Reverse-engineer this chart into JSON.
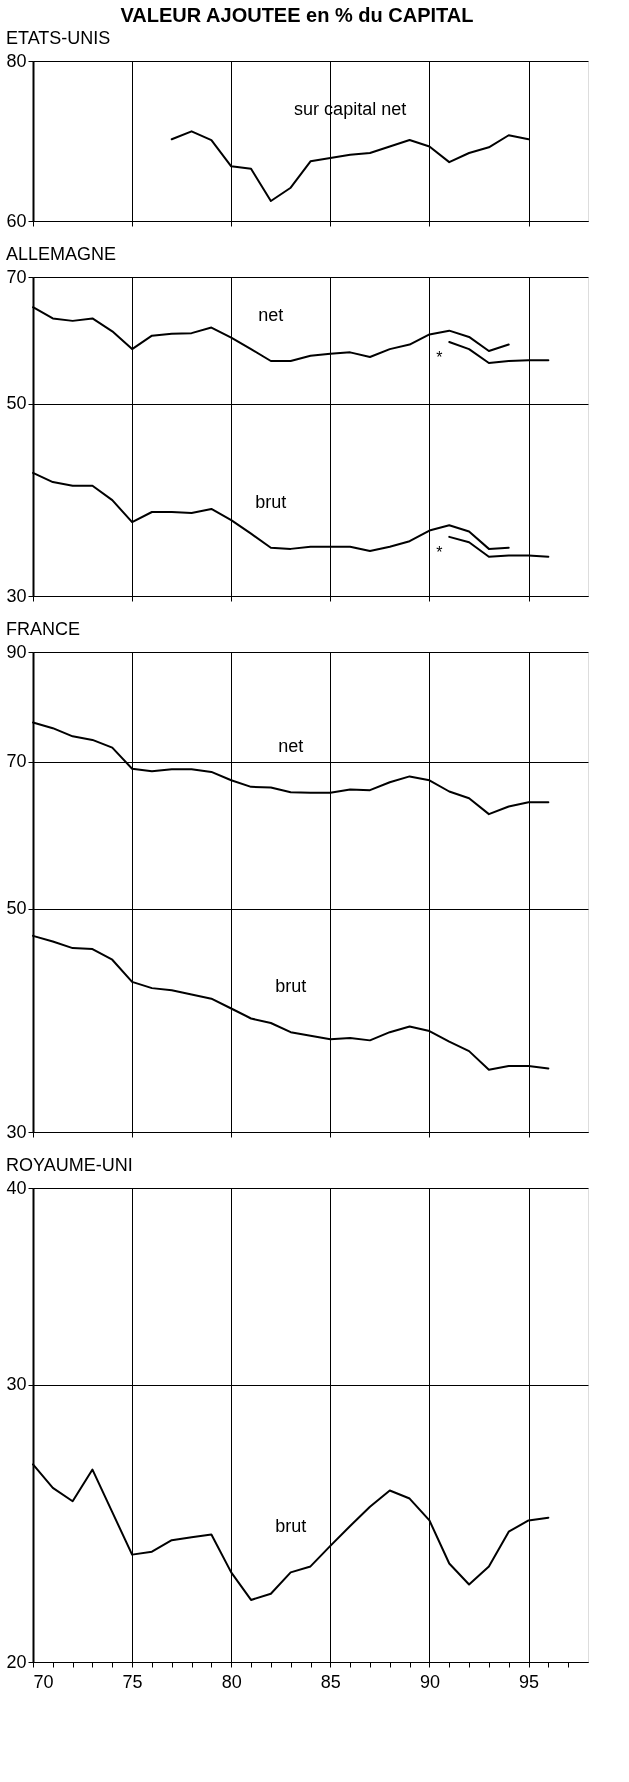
{
  "chart_data": [
    {
      "type": "line",
      "title": "VALEUR AJOUTEE en % du CAPITAL",
      "subtitle": "ETATS-UNIS",
      "log": true,
      "grid": true,
      "tick_labels": "y",
      "xlim": [
        70,
        98
      ],
      "xticks": [
        70,
        75,
        80,
        85,
        90,
        95
      ],
      "ylim": [
        60,
        80
      ],
      "yticks": [
        60,
        80
      ],
      "x": [
        77,
        78,
        79,
        80,
        81,
        82,
        83,
        84,
        85,
        86,
        87,
        88,
        89,
        90,
        91,
        92,
        93,
        94,
        95
      ],
      "series": [
        {
          "name": "sur capital net",
          "color": "#000000",
          "values": [
            69.5,
            70.5,
            69.4,
            66.2,
            65.9,
            62.2,
            63.7,
            66.8,
            67.2,
            67.6,
            67.8,
            68.6,
            69.4,
            68.6,
            66.7,
            67.8,
            68.5,
            70.0,
            69.5
          ]
        }
      ]
    },
    {
      "type": "line",
      "title": "ALLEMAGNE",
      "log": true,
      "grid": true,
      "tick_labels": "y",
      "xlim": [
        70,
        98
      ],
      "xticks": [
        70,
        75,
        80,
        85,
        90,
        95
      ],
      "ylim": [
        30,
        70
      ],
      "yticks": [
        30,
        50,
        70
      ],
      "x": [
        70,
        71,
        72,
        73,
        74,
        75,
        76,
        77,
        78,
        79,
        80,
        81,
        82,
        83,
        84,
        85,
        86,
        87,
        88,
        89,
        90,
        91,
        92,
        93,
        94
      ],
      "series": [
        {
          "name": "net",
          "color": "#000000",
          "values": [
            64.6,
            62.7,
            62.3,
            62.7,
            60.6,
            57.8,
            59.9,
            60.2,
            60.3,
            61.2,
            59.6,
            57.8,
            56.0,
            56.0,
            56.8,
            57.1,
            57.3,
            56.6,
            57.8,
            58.5,
            60.1,
            60.7,
            59.7,
            57.5,
            58.5
          ]
        },
        {
          "color": "#000000",
          "x": [
            91,
            92,
            93,
            94,
            95,
            96
          ],
          "values": [
            58.9,
            57.8,
            55.7,
            56.0,
            56.1,
            56.1
          ]
        },
        {
          "name": "brut",
          "color": "#000000",
          "values": [
            41.6,
            40.6,
            40.2,
            40.2,
            38.7,
            36.5,
            37.5,
            37.5,
            37.4,
            37.8,
            36.7,
            35.4,
            34.1,
            34.0,
            34.2,
            34.2,
            34.2,
            33.8,
            34.2,
            34.7,
            35.7,
            36.2,
            35.6,
            34.0,
            34.1
          ]
        },
        {
          "color": "#000000",
          "x": [
            91,
            92,
            93,
            94,
            95,
            96
          ],
          "values": [
            35.1,
            34.6,
            33.3,
            33.4,
            33.4,
            33.3
          ]
        }
      ],
      "annotations": [
        "*",
        "*"
      ]
    },
    {
      "type": "line",
      "title": "FRANCE",
      "log": true,
      "grid": true,
      "tick_labels": "y",
      "xlim": [
        70,
        98
      ],
      "xticks": [
        70,
        75,
        80,
        85,
        90,
        95
      ],
      "ylim": [
        30,
        90
      ],
      "yticks": [
        30,
        50,
        70,
        90
      ],
      "x": [
        70,
        71,
        72,
        73,
        74,
        75,
        76,
        77,
        78,
        79,
        80,
        81,
        82,
        83,
        84,
        85,
        86,
        87,
        88,
        89,
        90,
        91,
        92,
        93,
        94,
        95,
        96
      ],
      "series": [
        {
          "name": "net",
          "color": "#000000",
          "values": [
            76.6,
            75.6,
            74.2,
            73.6,
            72.3,
            68.9,
            68.5,
            68.8,
            68.8,
            68.4,
            67.1,
            66.1,
            66.0,
            65.3,
            65.2,
            65.2,
            65.7,
            65.6,
            66.8,
            67.7,
            67.1,
            65.4,
            64.4,
            62.1,
            63.2,
            63.8,
            63.8
          ]
        },
        {
          "name": "brut",
          "color": "#000000",
          "values": [
            47.0,
            46.4,
            45.7,
            45.6,
            44.5,
            42.3,
            41.7,
            41.5,
            41.1,
            40.7,
            39.8,
            38.9,
            38.5,
            37.7,
            37.4,
            37.1,
            37.2,
            37.0,
            37.7,
            38.2,
            37.8,
            36.9,
            36.1,
            34.6,
            34.9,
            34.9,
            34.7
          ]
        }
      ]
    },
    {
      "type": "line",
      "title": "ROYAUME-UNI",
      "log": true,
      "grid": true,
      "xlim": [
        70,
        98
      ],
      "ylim": [
        20,
        40
      ],
      "yticks": [
        20,
        30,
        40
      ],
      "xticks": [
        70,
        {
          "value": 71,
          "label": null
        },
        {
          "value": 72,
          "label": null
        },
        {
          "value": 73,
          "label": null
        },
        {
          "value": 74,
          "label": null
        },
        75,
        {
          "value": 76,
          "label": null
        },
        {
          "value": 77,
          "label": null
        },
        {
          "value": 78,
          "label": null
        },
        {
          "value": 79,
          "label": null
        },
        80,
        {
          "value": 81,
          "label": null
        },
        {
          "value": 82,
          "label": null
        },
        {
          "value": 83,
          "label": null
        },
        {
          "value": 84,
          "label": null
        },
        85,
        {
          "value": 86,
          "label": null
        },
        {
          "value": 87,
          "label": null
        },
        {
          "value": 88,
          "label": null
        },
        {
          "value": 89,
          "label": null
        },
        90,
        {
          "value": 91,
          "label": null
        },
        {
          "value": 92,
          "label": null
        },
        {
          "value": 93,
          "label": null
        },
        {
          "value": 94,
          "label": null
        },
        95,
        {
          "value": 96,
          "label": null
        },
        {
          "value": 97,
          "label": null
        }
      ],
      "x": [
        70,
        71,
        72,
        73,
        74,
        75,
        76,
        77,
        78,
        79,
        80,
        81,
        82,
        83,
        84,
        85,
        86,
        87,
        88,
        89,
        90,
        91,
        92,
        93,
        94,
        95,
        96
      ],
      "series": [
        {
          "name": "brut",
          "color": "#000000",
          "values": [
            26.7,
            25.8,
            25.3,
            26.5,
            24.9,
            23.4,
            23.5,
            23.9,
            24.0,
            24.1,
            22.8,
            21.9,
            22.1,
            22.8,
            23.0,
            23.7,
            24.4,
            25.1,
            25.7,
            25.4,
            24.6,
            23.1,
            22.4,
            23.0,
            24.2,
            24.6,
            24.7
          ]
        }
      ]
    }
  ]
}
